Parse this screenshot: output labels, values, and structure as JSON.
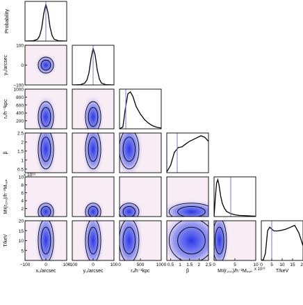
{
  "chart_data": {
    "type": "corner",
    "params": [
      {
        "key": "x0",
        "label": "x₀/arcsec",
        "range": [
          -100,
          100
        ],
        "ticks": [
          -100,
          0,
          100
        ],
        "tick_labels": [
          "−100",
          "0",
          "100"
        ],
        "peak": 0,
        "sigma": 13
      },
      {
        "key": "y0",
        "label": "y₀/arcsec",
        "range": [
          -100,
          100
        ],
        "ticks": [
          -100,
          0,
          100
        ],
        "tick_labels": [
          "−100",
          "0",
          "100"
        ],
        "peak": 0,
        "sigma": 15
      },
      {
        "key": "rc",
        "label": "rₓ/h⁻¹kpc",
        "range": [
          0,
          1000
        ],
        "ticks": [
          200,
          400,
          600,
          800,
          1000
        ],
        "tick_labels": [
          "200",
          "400",
          "600",
          "800",
          "1000"
        ],
        "x_ticks": [
          0,
          500,
          1000
        ],
        "x_tick_labels": [
          "0",
          "500",
          "1000"
        ],
        "peak": 240
      },
      {
        "key": "beta",
        "label": "β",
        "range": [
          0.3,
          2.5
        ],
        "ticks": [
          0.5,
          1,
          1.5,
          2,
          2.5
        ],
        "tick_labels": [
          "0.5",
          "1",
          "1.5",
          "2",
          "2.5"
        ]
      },
      {
        "key": "mg",
        "label": "Mᵍ(r₂₀₀)/h⁻²Mₛᵤₙ",
        "range": [
          0,
          10
        ],
        "ticks": [
          2,
          4,
          6,
          8,
          10
        ],
        "tick_labels": [
          "2",
          "4",
          "6",
          "8",
          "10"
        ],
        "x_ticks": [
          0,
          5,
          10
        ],
        "x_tick_labels": [
          "0",
          "5",
          "10"
        ],
        "multiplier": "x 10¹³",
        "peak": 1.0
      },
      {
        "key": "T",
        "label": "T/keV",
        "range": [
          0,
          20
        ],
        "ticks": [
          5,
          10,
          15,
          20
        ],
        "tick_labels": [
          "5",
          "10",
          "15",
          "20"
        ],
        "x_ticks": [
          0,
          5,
          10,
          15,
          20
        ],
        "x_tick_labels": [
          "0",
          "5",
          "10",
          "15",
          "20"
        ]
      }
    ],
    "diagonal_ylabel": "Probability",
    "true_values": [
      0,
      0,
      150,
      0.85,
      4,
      5
    ],
    "marginals": [
      {
        "x": [
          -100,
          -60,
          -40,
          -30,
          -20,
          -10,
          0,
          10,
          20,
          30,
          40,
          60,
          100
        ],
        "y": [
          0,
          0.01,
          0.05,
          0.14,
          0.35,
          0.75,
          1.0,
          0.78,
          0.38,
          0.15,
          0.05,
          0.01,
          0
        ]
      },
      {
        "x": [
          -100,
          -60,
          -40,
          -30,
          -20,
          -10,
          0,
          10,
          20,
          30,
          40,
          60,
          100
        ],
        "y": [
          0,
          0.01,
          0.05,
          0.13,
          0.33,
          0.72,
          1.0,
          0.8,
          0.4,
          0.16,
          0.05,
          0.01,
          0
        ]
      },
      {
        "x": [
          0,
          80,
          140,
          200,
          260,
          320,
          400,
          500,
          600,
          700,
          800,
          900,
          1000
        ],
        "y": [
          0,
          0.05,
          0.55,
          0.95,
          1.0,
          0.88,
          0.6,
          0.4,
          0.25,
          0.15,
          0.08,
          0.04,
          0.02
        ]
      },
      {
        "x": [
          0.3,
          0.5,
          0.7,
          0.9,
          1.1,
          1.3,
          1.5,
          1.7,
          1.9,
          2.1,
          2.3,
          2.5
        ],
        "y": [
          0.02,
          0.2,
          0.55,
          0.68,
          0.7,
          0.78,
          0.85,
          0.9,
          0.95,
          1.0,
          0.96,
          0.85
        ]
      },
      {
        "x": [
          0,
          0.3,
          0.6,
          0.9,
          1.2,
          1.6,
          2.0,
          2.5,
          3.0,
          4.0,
          5.0,
          6.0,
          8.0,
          10.0
        ],
        "y": [
          0,
          0.5,
          0.9,
          1.0,
          0.85,
          0.55,
          0.35,
          0.22,
          0.14,
          0.08,
          0.05,
          0.03,
          0.02,
          0.01
        ]
      },
      {
        "x": [
          0,
          1,
          2,
          3,
          4,
          5,
          6,
          8,
          10,
          12,
          14,
          16,
          18,
          20
        ],
        "y": [
          0,
          0.02,
          0.2,
          0.8,
          0.9,
          0.85,
          0.8,
          0.8,
          0.82,
          0.85,
          0.9,
          0.95,
          0.75,
          0.4
        ]
      }
    ]
  }
}
